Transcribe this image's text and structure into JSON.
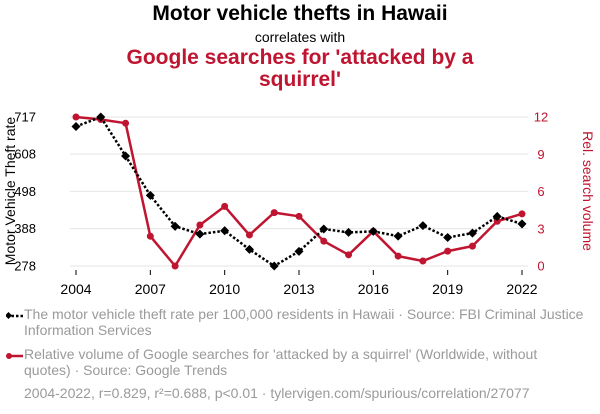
{
  "header": {
    "title": "Motor vehicle thefts in Hawaii",
    "subtitle": "correlates with",
    "title2": "Google searches for 'attacked by a squirrel'"
  },
  "legend": {
    "series1": "The motor vehicle theft rate per 100,000 residents in Hawaii · Source: FBI Criminal Justice Information Services",
    "series2": "Relative volume of Google searches for 'attacked by a squirrel' (Worldwide, without quotes) · Source: Google Trends"
  },
  "footer": "2004-2022, r=0.829, r²=0.688, p<0.01 · tylervigen.com/spurious/correlation/27077",
  "colors": {
    "series1": "#000000",
    "series2": "#c01530"
  },
  "chart_data": {
    "type": "line",
    "x": [
      2004,
      2005,
      2006,
      2007,
      2008,
      2009,
      2010,
      2011,
      2012,
      2013,
      2014,
      2015,
      2016,
      2017,
      2018,
      2019,
      2020,
      2021,
      2022
    ],
    "xticks": [
      "2004",
      "2007",
      "2010",
      "2013",
      "2016",
      "2019",
      "2022"
    ],
    "xlim": [
      2004,
      2022
    ],
    "series": [
      {
        "name": "Motor Vehicle Theft rate",
        "axis": "left",
        "values": [
          689,
          717,
          602,
          486,
          395,
          372,
          382,
          327,
          278,
          321,
          387,
          377,
          380,
          366,
          397,
          362,
          375,
          424,
          402
        ]
      },
      {
        "name": "Rel. search volume",
        "axis": "right",
        "values": [
          12,
          11.8,
          11.5,
          2.4,
          0,
          3.3,
          4.8,
          2.5,
          4.3,
          4.0,
          2.0,
          0.9,
          2.8,
          0.8,
          0.4,
          1.2,
          1.6,
          3.6,
          4.2
        ]
      }
    ],
    "yleft": {
      "label": "Motor Vehicle Theft rate",
      "ticks": [
        "278",
        "388",
        "498",
        "608",
        "717"
      ],
      "lim": [
        278,
        717
      ]
    },
    "yright": {
      "label": "Rel. search volume",
      "ticks": [
        "0",
        "3",
        "6",
        "9",
        "12"
      ],
      "lim": [
        0,
        12
      ]
    }
  }
}
